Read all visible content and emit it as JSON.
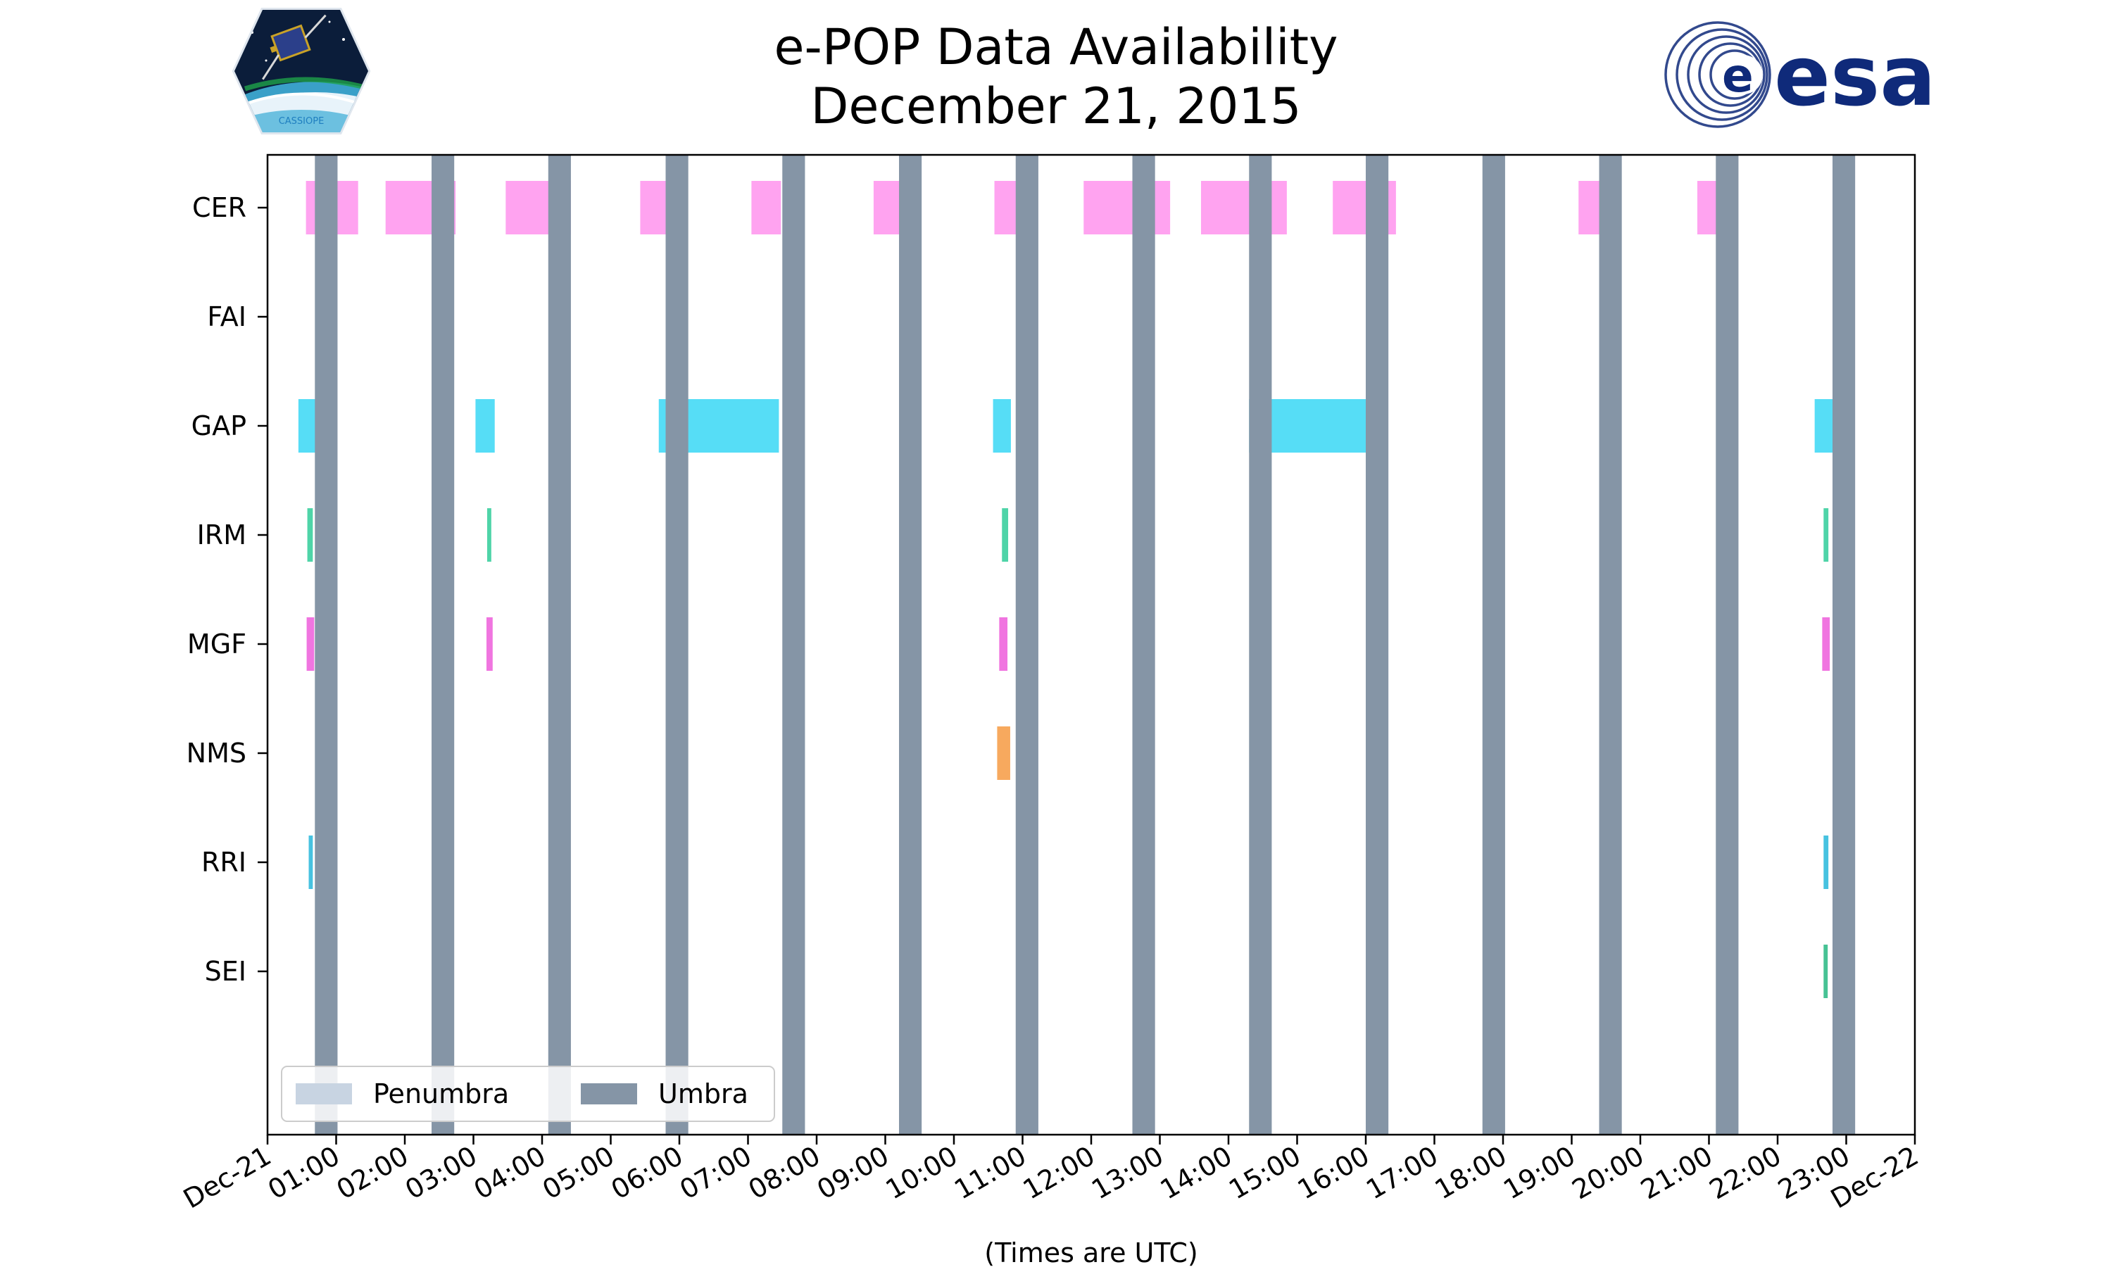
{
  "chart_data": {
    "type": "timeline",
    "title_line1": "e-POP Data Availability",
    "title_line2": "December 21, 2015",
    "xlabel": "(Times are UTC)",
    "x_unit": "hours UTC",
    "xlim": [
      0,
      24
    ],
    "x_ticks": [
      {
        "value": 0,
        "label": "Dec-21"
      },
      {
        "value": 1,
        "label": "01:00"
      },
      {
        "value": 2,
        "label": "02:00"
      },
      {
        "value": 3,
        "label": "03:00"
      },
      {
        "value": 4,
        "label": "04:00"
      },
      {
        "value": 5,
        "label": "05:00"
      },
      {
        "value": 6,
        "label": "06:00"
      },
      {
        "value": 7,
        "label": "07:00"
      },
      {
        "value": 8,
        "label": "08:00"
      },
      {
        "value": 9,
        "label": "09:00"
      },
      {
        "value": 10,
        "label": "10:00"
      },
      {
        "value": 11,
        "label": "11:00"
      },
      {
        "value": 12,
        "label": "12:00"
      },
      {
        "value": 13,
        "label": "13:00"
      },
      {
        "value": 14,
        "label": "14:00"
      },
      {
        "value": 15,
        "label": "15:00"
      },
      {
        "value": 16,
        "label": "16:00"
      },
      {
        "value": 17,
        "label": "17:00"
      },
      {
        "value": 18,
        "label": "18:00"
      },
      {
        "value": 19,
        "label": "19:00"
      },
      {
        "value": 20,
        "label": "20:00"
      },
      {
        "value": 21,
        "label": "21:00"
      },
      {
        "value": 22,
        "label": "22:00"
      },
      {
        "value": 23,
        "label": "23:00"
      },
      {
        "value": 24,
        "label": "Dec-22"
      }
    ],
    "instruments": [
      "CER",
      "FAI",
      "GAP",
      "IRM",
      "MGF",
      "NMS",
      "RRI",
      "SEI"
    ],
    "series": [
      {
        "name": "CER",
        "color": "#ff99ee",
        "intervals": [
          [
            0.56,
            1.32
          ],
          [
            1.72,
            2.74
          ],
          [
            3.47,
            4.42
          ],
          [
            5.43,
            5.8
          ],
          [
            7.05,
            7.48
          ],
          [
            8.83,
            9.24
          ],
          [
            10.59,
            10.95
          ],
          [
            11.89,
            13.15
          ],
          [
            13.6,
            14.85
          ],
          [
            15.52,
            16.44
          ],
          [
            19.1,
            19.58
          ],
          [
            20.83,
            21.17
          ]
        ]
      },
      {
        "name": "FAI",
        "color": "#00bfff",
        "intervals": []
      },
      {
        "name": "GAP",
        "color": "#44d9f5",
        "intervals": [
          [
            0.45,
            0.84
          ],
          [
            3.03,
            3.31
          ],
          [
            5.7,
            7.45
          ],
          [
            10.57,
            10.83
          ],
          [
            14.3,
            16.02
          ],
          [
            22.54,
            22.9
          ]
        ]
      },
      {
        "name": "IRM",
        "color": "#3ccf9f",
        "intervals": [
          [
            0.58,
            0.66
          ],
          [
            3.2,
            3.26
          ],
          [
            10.7,
            10.79
          ],
          [
            22.67,
            22.74
          ]
        ]
      },
      {
        "name": "MGF",
        "color": "#ee66dd",
        "intervals": [
          [
            0.57,
            0.68
          ],
          [
            3.19,
            3.28
          ],
          [
            10.66,
            10.78
          ],
          [
            22.65,
            22.76
          ]
        ]
      },
      {
        "name": "NMS",
        "color": "#f6a04d",
        "intervals": [
          [
            10.63,
            10.82
          ]
        ]
      },
      {
        "name": "RRI",
        "color": "#33bbdd",
        "intervals": [
          [
            0.6,
            0.66
          ],
          [
            22.67,
            22.74
          ]
        ]
      },
      {
        "name": "SEI",
        "color": "#33bb88",
        "intervals": [
          [
            22.67,
            22.73
          ]
        ]
      }
    ],
    "umbra": [
      [
        0.69,
        1.02
      ],
      [
        2.39,
        2.72
      ],
      [
        4.09,
        4.42
      ],
      [
        5.8,
        6.13
      ],
      [
        7.5,
        7.83
      ],
      [
        9.2,
        9.53
      ],
      [
        10.9,
        11.23
      ],
      [
        12.6,
        12.93
      ],
      [
        14.3,
        14.63
      ],
      [
        16.0,
        16.33
      ],
      [
        17.7,
        18.03
      ],
      [
        19.4,
        19.73
      ],
      [
        21.1,
        21.43
      ],
      [
        22.8,
        23.13
      ]
    ],
    "umbra_color": "#8595a6",
    "penumbra_color": "#c8d4e2",
    "legend": {
      "location": "lower-left",
      "entries": [
        "Penumbra",
        "Umbra"
      ]
    }
  },
  "logos": {
    "left": {
      "name": "CASSIOPE mission patch",
      "text": "CASSIOPE"
    },
    "right": {
      "name": "ESA logo",
      "text": "esa",
      "color": "#0f2a7a"
    }
  }
}
